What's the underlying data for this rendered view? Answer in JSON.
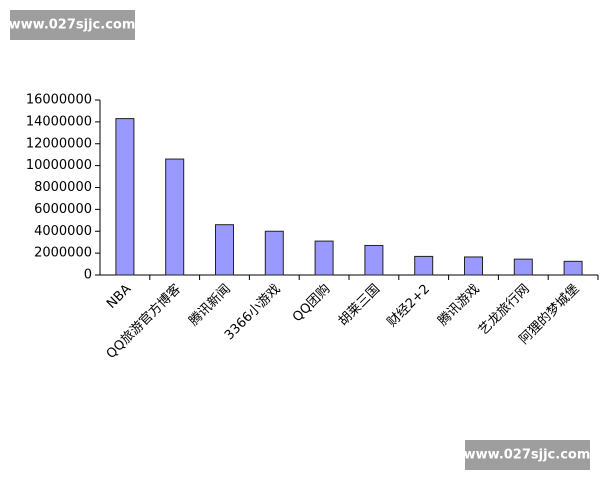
{
  "watermarks": [
    "www.027sjjc.com",
    "www.027sjjc.com"
  ],
  "chart_data": {
    "type": "bar",
    "categories": [
      "NBA",
      "QQ旅游官方博客",
      "腾讯新闻",
      "3366小游戏",
      "QQ团购",
      "胡莱三国",
      "财经2+2",
      "腾讯游戏",
      "艺龙旅行网",
      "阿狸的梦城堡"
    ],
    "values": [
      14300000,
      10600000,
      4600000,
      4000000,
      3100000,
      2700000,
      1700000,
      1650000,
      1450000,
      1250000
    ],
    "color": "#9999ff",
    "ylim": [
      0,
      16000000
    ],
    "yticks": [
      0,
      2000000,
      4000000,
      6000000,
      8000000,
      10000000,
      12000000,
      14000000,
      16000000
    ]
  }
}
